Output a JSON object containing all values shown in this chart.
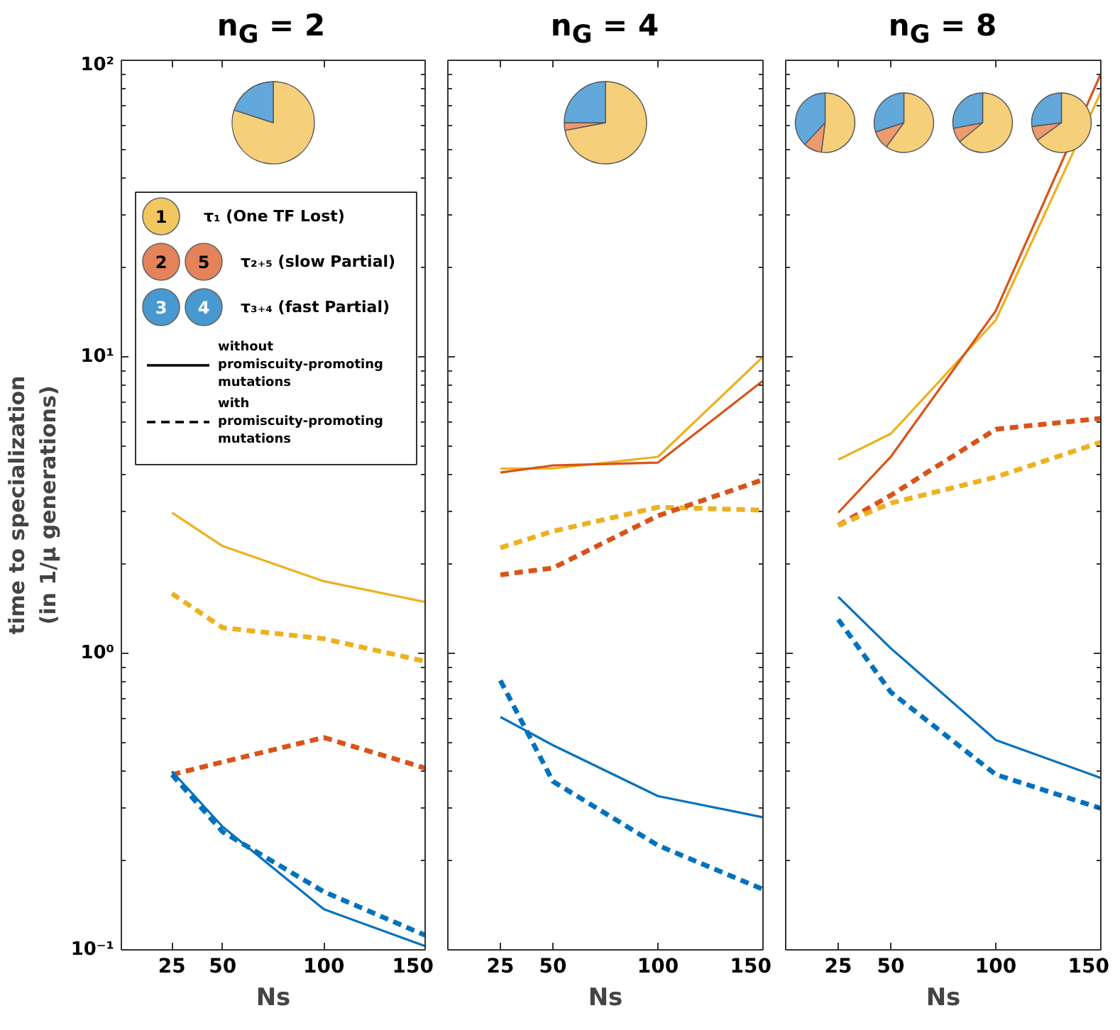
{
  "chart_data": [
    {
      "type": "line",
      "title": "n$_{G}$ = 2",
      "xlabel": "Ns",
      "ylabel": "time to specialization\n(in 1/μ generations)",
      "x": [
        25,
        50,
        100,
        150
      ],
      "xlim": [
        0,
        150
      ],
      "xticks": [
        25,
        50,
        100,
        150
      ],
      "ylim": [
        0.1,
        100
      ],
      "log": "y",
      "yticks": [
        {
          "value": 0.1,
          "label": "10⁻¹"
        },
        {
          "value": 1,
          "label": "10⁰"
        },
        {
          "value": 10,
          "label": "10¹"
        },
        {
          "value": 100,
          "label": "10²"
        }
      ],
      "legend": "top left",
      "annotations": [
        "1",
        "2",
        "5",
        "3",
        "4",
        "without\npromiscuity-promoting\nmutations",
        "with\npromiscuity-promoting\nmutations"
      ],
      "series": [
        {
          "name": "τ₁ (One TF Lost)",
          "color": "#edb120",
          "line_style": "solid",
          "values": [
            2.98,
            2.3,
            1.75,
            1.49
          ]
        },
        {
          "color": "#edb120",
          "line_style": "dashed",
          "values": [
            1.59,
            1.22,
            1.12,
            0.94
          ]
        },
        {
          "name": "τ₂₊₅ (slow Partial)",
          "color": "#d95319",
          "line_style": "dashed",
          "values": [
            0.39,
            0.43,
            0.52,
            0.41
          ]
        },
        {
          "name": "τ₃₊₄ (fast Partial)",
          "color": "#0072bd",
          "line_style": "solid",
          "values": [
            0.4,
            0.26,
            0.137,
            0.103
          ]
        },
        {
          "color": "#0072bd",
          "line_style": "dashed",
          "values": [
            0.39,
            0.25,
            0.157,
            0.112
          ]
        }
      ]
    },
    {
      "type": "pie",
      "categories": [
        null,
        null
      ],
      "values": [
        80,
        20
      ],
      "colors": [
        "#f5cf7a",
        "#62a8da"
      ]
    },
    {
      "type": "line",
      "title": "n$_{G}$ = 4",
      "xlabel": "Ns",
      "x": [
        25,
        50,
        100,
        150
      ],
      "xlim": [
        0,
        150
      ],
      "xticks": [
        25,
        50,
        100,
        150
      ],
      "ylim": [
        0.1,
        100
      ],
      "log": "y",
      "yticks": [
        {
          "value": 0.1,
          "label": null
        },
        {
          "value": 1,
          "label": null
        },
        {
          "value": 10,
          "label": null
        },
        {
          "value": 100,
          "label": null
        }
      ],
      "tick_labels": "x",
      "series": [
        {
          "color": "#edb120",
          "line_style": "solid",
          "values": [
            4.2,
            4.2,
            4.6,
            10.0
          ]
        },
        {
          "color": "#d95319",
          "line_style": "solid",
          "values": [
            4.07,
            4.3,
            4.4,
            8.3
          ]
        },
        {
          "color": "#edb120",
          "line_style": "dashed",
          "values": [
            2.27,
            2.58,
            3.11,
            3.04
          ]
        },
        {
          "color": "#d95319",
          "line_style": "dashed",
          "values": [
            1.84,
            1.94,
            2.91,
            3.85
          ]
        },
        {
          "color": "#0072bd",
          "line_style": "solid",
          "values": [
            0.61,
            0.49,
            0.33,
            0.28
          ]
        },
        {
          "color": "#0072bd",
          "line_style": "dashed",
          "values": [
            0.81,
            0.37,
            0.225,
            0.16
          ]
        }
      ]
    },
    {
      "type": "pie",
      "categories": [
        null,
        null,
        null
      ],
      "values": [
        72,
        3,
        25
      ],
      "colors": [
        "#f5cf7a",
        "#ec9a70",
        "#62a8da"
      ]
    },
    {
      "type": "line",
      "title": "n$_{G}$ = 8",
      "xlabel": "Ns",
      "x": [
        25,
        50,
        100,
        150
      ],
      "xlim": [
        0,
        150
      ],
      "xticks": [
        25,
        50,
        100,
        150
      ],
      "ylim": [
        0.1,
        100
      ],
      "log": "y",
      "yticks": [
        {
          "value": 0.1,
          "label": null
        },
        {
          "value": 1,
          "label": null
        },
        {
          "value": 10,
          "label": null
        },
        {
          "value": 100,
          "label": null
        }
      ],
      "tick_labels": "x",
      "series": [
        {
          "color": "#edb120",
          "line_style": "solid",
          "values": [
            4.5,
            5.5,
            13.3,
            78
          ]
        },
        {
          "color": "#d95319",
          "line_style": "solid",
          "values": [
            2.98,
            4.6,
            14.3,
            90
          ]
        },
        {
          "color": "#d95319",
          "line_style": "dashed",
          "values": [
            2.7,
            3.41,
            5.7,
            6.2
          ]
        },
        {
          "color": "#edb120",
          "line_style": "dashed",
          "values": [
            2.7,
            3.21,
            3.93,
            5.15
          ]
        },
        {
          "color": "#0072bd",
          "line_style": "solid",
          "values": [
            1.55,
            1.04,
            0.51,
            0.38
          ]
        },
        {
          "color": "#0072bd",
          "line_style": "dashed",
          "values": [
            1.3,
            0.74,
            0.39,
            0.3
          ]
        }
      ]
    },
    {
      "type": "pie",
      "categories": [
        null,
        null,
        null
      ],
      "values": [
        52,
        10,
        38
      ],
      "colors": [
        "#f5cf7a",
        "#ec9a70",
        "#62a8da"
      ]
    },
    {
      "type": "pie",
      "categories": [
        null,
        null,
        null
      ],
      "values": [
        60,
        10,
        30
      ],
      "colors": [
        "#f5cf7a",
        "#ec9a70",
        "#62a8da"
      ]
    },
    {
      "type": "pie",
      "categories": [
        null,
        null,
        null
      ],
      "values": [
        64,
        8,
        28
      ],
      "colors": [
        "#f5cf7a",
        "#ec9a70",
        "#62a8da"
      ]
    },
    {
      "type": "pie",
      "categories": [
        null,
        null,
        null
      ],
      "values": [
        65,
        8,
        27
      ],
      "colors": [
        "#f5cf7a",
        "#ec9a70",
        "#62a8da"
      ]
    }
  ]
}
